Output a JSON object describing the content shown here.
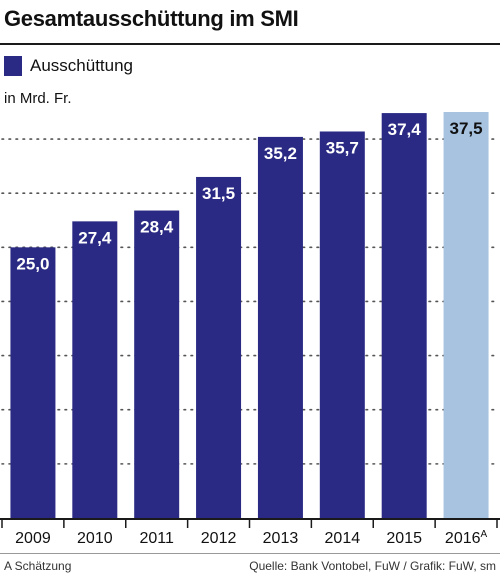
{
  "title": "Gesamtausschüttung im SMI",
  "unit_label": "in Mrd. Fr.",
  "footnote": "A Schätzung",
  "source": "Quelle: Bank Vontobel, FuW / Grafik: FuW, sm",
  "colors": {
    "actual": "#2a2a84",
    "estimate": "#a7c3e0",
    "axis": "#1a1a1a",
    "grid": "#555555"
  },
  "chart_data": {
    "type": "bar",
    "title": "Gesamtausschüttung im SMI",
    "xlabel": "",
    "ylabel": "in Mrd. Fr.",
    "ylim": [
      0,
      40
    ],
    "grid": true,
    "legend": "top-left",
    "categories": [
      "2009",
      "2010",
      "2011",
      "2012",
      "2013",
      "2014",
      "2015",
      "2016"
    ],
    "category_superscripts": [
      "",
      "",
      "",
      "",
      "",
      "",
      "",
      "A"
    ],
    "series": [
      {
        "name": "Ausschüttung",
        "values": [
          25.0,
          27.4,
          28.4,
          31.5,
          35.2,
          35.7,
          37.4,
          37.5
        ],
        "labels": [
          "25,0",
          "27,4",
          "28,4",
          "31,5",
          "35,2",
          "35,7",
          "37,4",
          "37,5"
        ],
        "estimate": [
          false,
          false,
          false,
          false,
          false,
          false,
          false,
          true
        ]
      }
    ]
  }
}
